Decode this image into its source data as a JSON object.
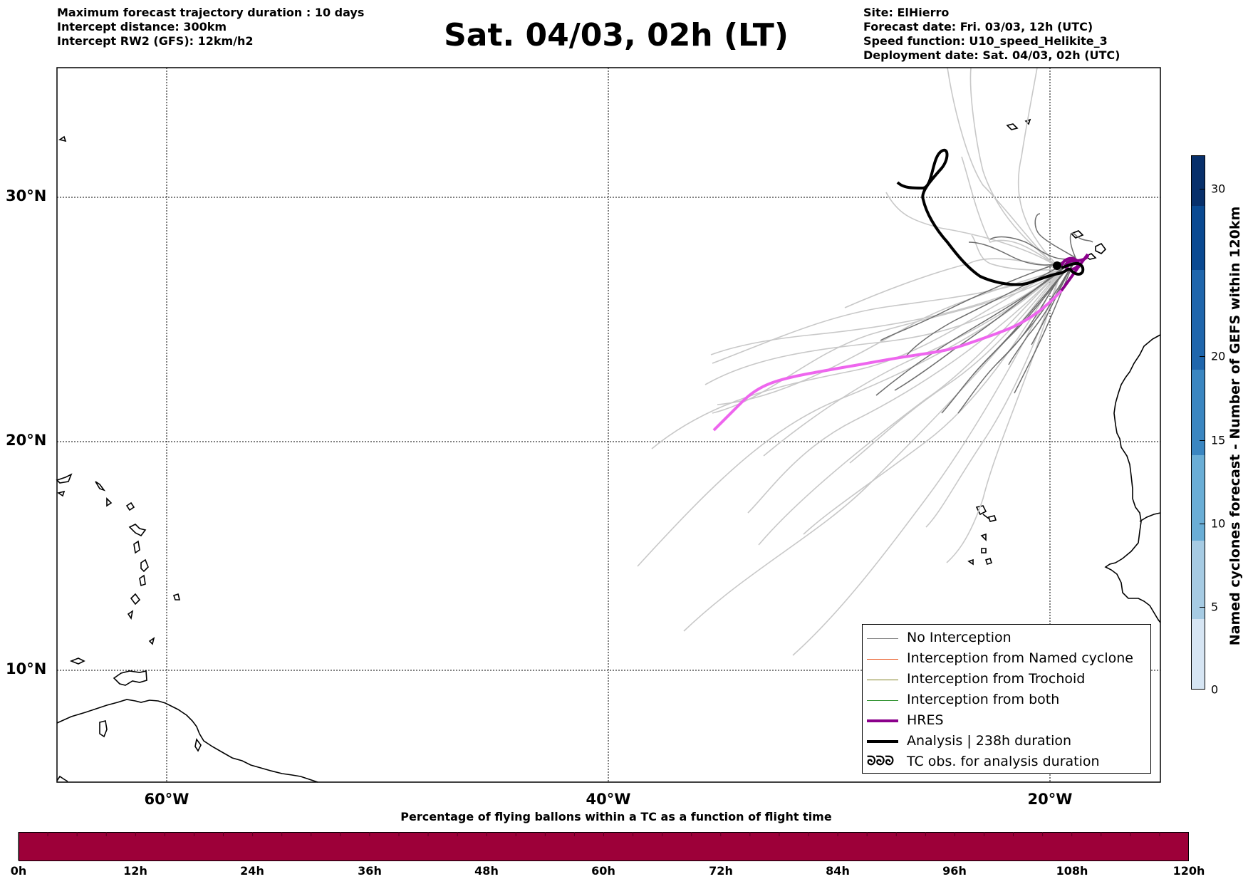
{
  "info_left": [
    "Maximum forecast trajectory duration : 10 days",
    "Intercept distance: 300km",
    "Intercept RW2 (GFS):  12km/h2"
  ],
  "info_right": [
    "Site: ElHierro",
    "Forecast date: Fri. 03/03, 12h (UTC)",
    "Speed function: U10_speed_Helikite_3",
    "Deployment date: Sat. 04/03, 02h (UTC)"
  ],
  "title": "Sat. 04/03, 02h (LT)",
  "map": {
    "lat_labels": [
      "30°N",
      "20°N",
      "10°N"
    ],
    "lon_labels": [
      "60°W",
      "40°W",
      "20°W"
    ],
    "grid": true
  },
  "legend": {
    "items": [
      {
        "label": "No Interception",
        "color": "#808080"
      },
      {
        "label": "Interception from Named cyclone",
        "color": "#e8541e"
      },
      {
        "label": "Interception from Trochoid",
        "color": "#808020"
      },
      {
        "label": "Interception from both",
        "color": "#228b22"
      },
      {
        "label": "HRES",
        "color": "#8b008b"
      },
      {
        "label": "Analysis | 238h duration",
        "color": "#000000"
      },
      {
        "label": "TC obs. for analysis duration",
        "color": "#000000",
        "symbol": "ᘐᘐᘐ"
      }
    ]
  },
  "colorbar_vertical": {
    "label": "Named cyclones forecast - Number of GEFS within 120km",
    "ticks": [
      "0",
      "5",
      "10",
      "15",
      "20",
      "30"
    ],
    "range": [
      0,
      32
    ]
  },
  "colorbar_horizontal": {
    "title": "Percentage of flying ballons within a TC as a function of flight time",
    "ticks": [
      "0h",
      "12h",
      "24h",
      "36h",
      "48h",
      "60h",
      "72h",
      "84h",
      "96h",
      "108h",
      "120h"
    ],
    "color": "#9d0039"
  }
}
